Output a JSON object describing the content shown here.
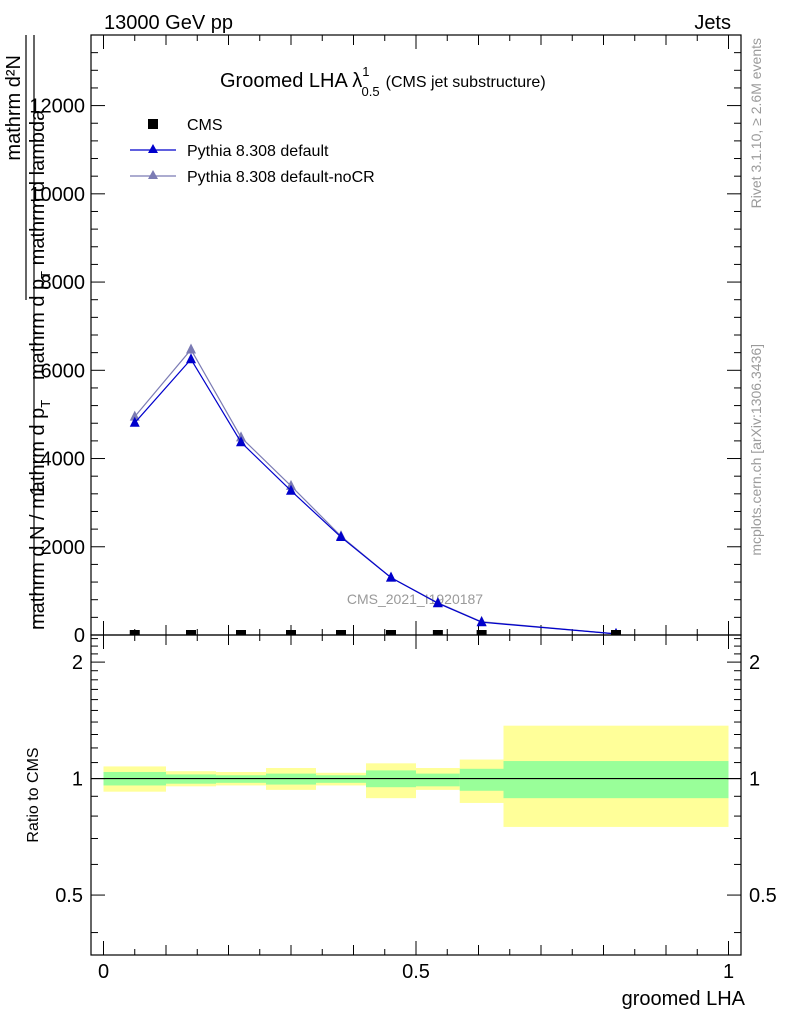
{
  "header": {
    "left": "13000 GeV pp",
    "right": "Jets"
  },
  "side_labels": {
    "rivet": "Rivet 3.1.10, ≥ 2.6M events",
    "mcplots": "mcplots.cern.ch [arXiv:1306.3436]"
  },
  "colors": {
    "cms": "#000000",
    "pythia_default": "#0000cc",
    "pythia_nocr": "#7b7bb4",
    "band_inner": "#99ff99",
    "band_outer": "#ffff99",
    "watermark": "#9a9a9a"
  },
  "chart_data": [
    {
      "type": "line",
      "title": "Groomed LHA λ",
      "title_sup": "1",
      "title_sub": "0.5",
      "subtitle": "(CMS jet substructure)",
      "ylabel_top": "mathrm d²N",
      "ylabel_bottom": "mathrm d p",
      "ylabel_bottom_sub": "T",
      "ylabel_bottom_tail": " mathrm d lambda",
      "ylabel_main_top": "1",
      "ylabel_main_bottom": "mathrm d N / mathrm d p",
      "ylabel_main_bottom_sub": "T",
      "watermark": "CMS_2021_I1920187",
      "ylim": [
        0,
        13600
      ],
      "xlim": [
        -0.02,
        1.02
      ],
      "yticks": [
        0,
        2000,
        4000,
        6000,
        8000,
        10000,
        12000
      ],
      "ytick_labels": [
        "0",
        "2000",
        "4000",
        "6000",
        "8000",
        "10000",
        "12000"
      ],
      "legend_position": "top-left",
      "series": [
        {
          "name": "CMS",
          "marker": "square",
          "x": [
            0.05,
            0.14,
            0.22,
            0.3,
            0.38,
            0.46,
            0.535,
            0.605,
            0.82
          ],
          "y": [
            0,
            0,
            0,
            0,
            0,
            0,
            0,
            0,
            0
          ]
        },
        {
          "name": "Pythia 8.308 default",
          "marker": "triangle",
          "x": [
            0.05,
            0.14,
            0.22,
            0.3,
            0.38,
            0.46,
            0.535,
            0.605,
            0.82
          ],
          "y": [
            4810,
            6250,
            4370,
            3270,
            2220,
            1300,
            720,
            290,
            25
          ]
        },
        {
          "name": "Pythia 8.308 default-noCR",
          "marker": "triangle",
          "x": [
            0.05,
            0.14,
            0.22,
            0.3,
            0.38,
            0.46,
            0.535,
            0.605,
            0.82
          ],
          "y": [
            4950,
            6470,
            4480,
            3380,
            2240,
            1300,
            730,
            300,
            25
          ]
        }
      ]
    },
    {
      "type": "area",
      "ylabel": "Ratio to CMS",
      "xlabel": "groomed LHA",
      "ylim": [
        0.35,
        2.35
      ],
      "xlim": [
        -0.02,
        1.02
      ],
      "yticks": [
        0.5,
        1,
        2
      ],
      "ytick_labels": [
        "0.5",
        "1",
        "2"
      ],
      "xticks": [
        0,
        0.5,
        1
      ],
      "xtick_labels": [
        "0",
        "0.5",
        "1"
      ],
      "bins": [
        {
          "x0": 0.0,
          "x1": 0.1,
          "inner": [
            0.96,
            1.04
          ],
          "outer": [
            0.925,
            1.075
          ]
        },
        {
          "x0": 0.1,
          "x1": 0.18,
          "inner": [
            0.97,
            1.025
          ],
          "outer": [
            0.955,
            1.045
          ]
        },
        {
          "x0": 0.18,
          "x1": 0.26,
          "inner": [
            0.975,
            1.02
          ],
          "outer": [
            0.96,
            1.04
          ]
        },
        {
          "x0": 0.26,
          "x1": 0.34,
          "inner": [
            0.965,
            1.03
          ],
          "outer": [
            0.935,
            1.065
          ]
        },
        {
          "x0": 0.34,
          "x1": 0.42,
          "inner": [
            0.975,
            1.02
          ],
          "outer": [
            0.96,
            1.035
          ]
        },
        {
          "x0": 0.42,
          "x1": 0.5,
          "inner": [
            0.95,
            1.05
          ],
          "outer": [
            0.89,
            1.095
          ]
        },
        {
          "x0": 0.5,
          "x1": 0.57,
          "inner": [
            0.955,
            1.03
          ],
          "outer": [
            0.935,
            1.065
          ]
        },
        {
          "x0": 0.57,
          "x1": 0.64,
          "inner": [
            0.93,
            1.06
          ],
          "outer": [
            0.865,
            1.12
          ]
        },
        {
          "x0": 0.64,
          "x1": 1.0,
          "inner": [
            0.89,
            1.11
          ],
          "outer": [
            0.75,
            1.37
          ]
        }
      ]
    }
  ]
}
